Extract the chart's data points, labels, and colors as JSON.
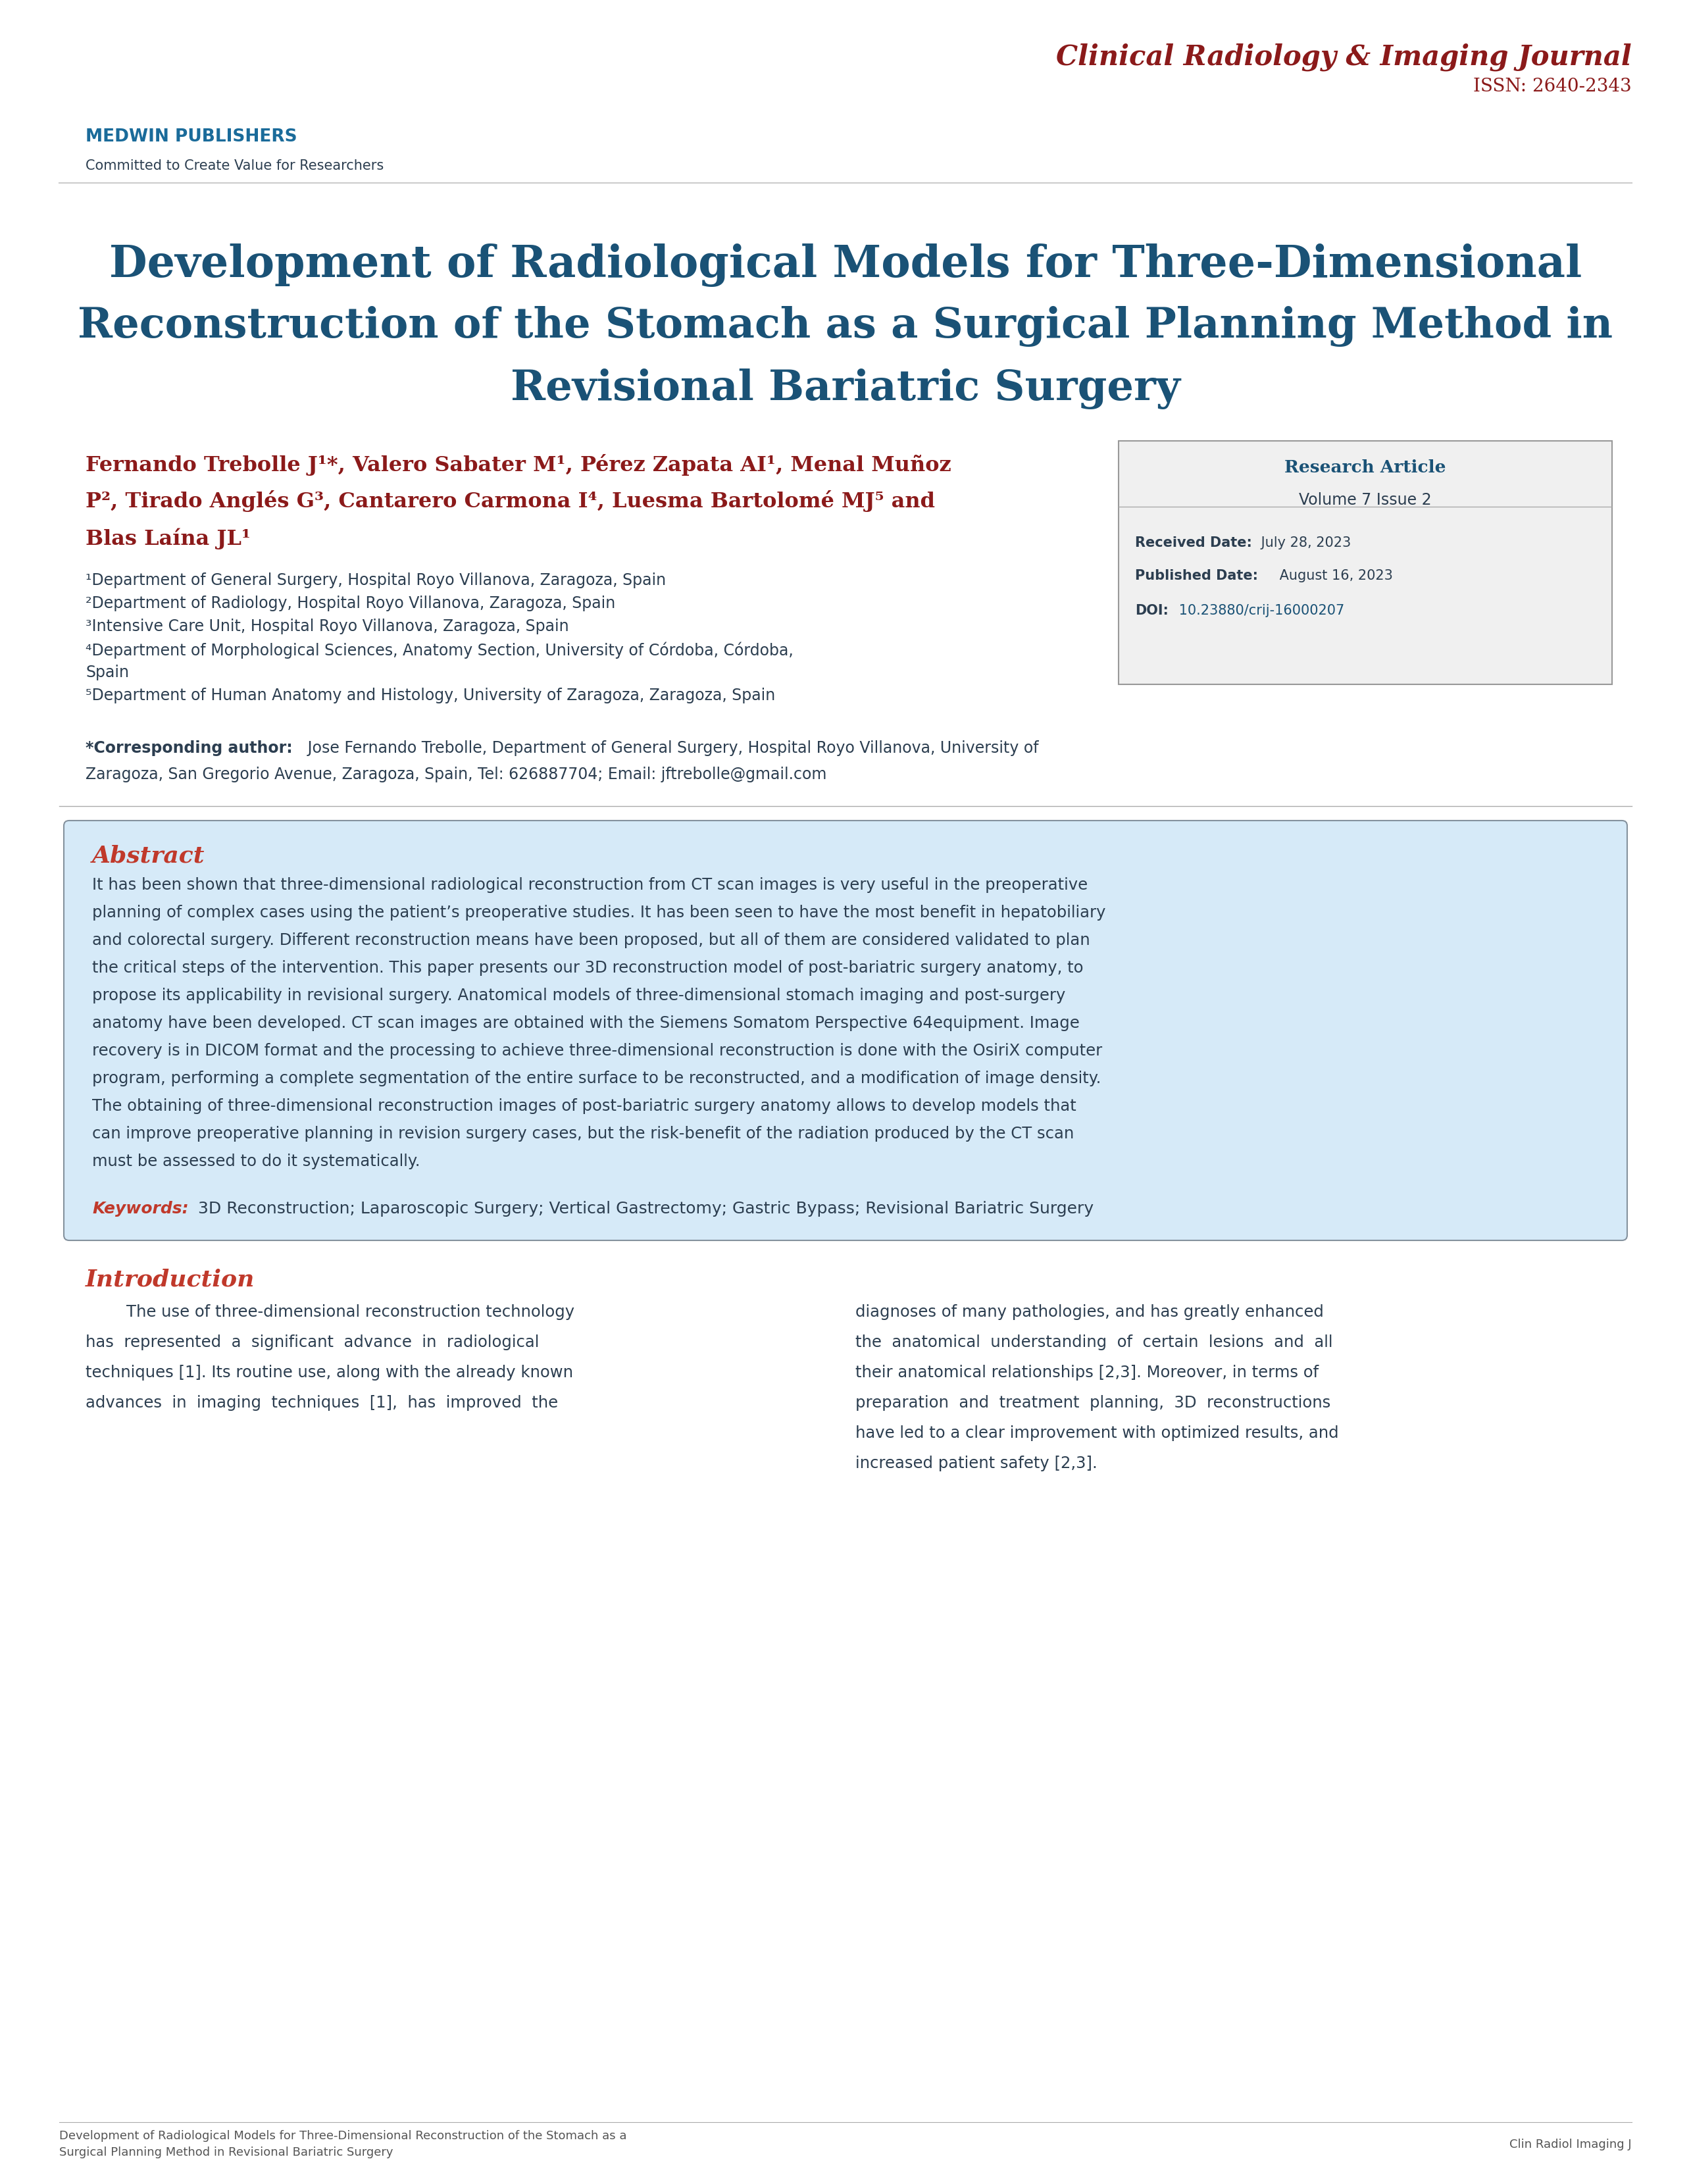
{
  "page_bg": "#ffffff",
  "journal_title": "Clinical Radiology & Imaging Journal",
  "journal_title_color": "#8B1A1A",
  "issn": "ISSN: 2640-2343",
  "issn_color": "#8B1A1A",
  "publisher_name": "MEDWIN PUBLISHERS",
  "publisher_name_color": "#1a6b9a",
  "publisher_tagline": "Committed to Create Value for Researchers",
  "publisher_tagline_color": "#2c3e50",
  "article_title_line1": "Development of Radiological Models for Three-Dimensional",
  "article_title_line2": "Reconstruction of the Stomach as a Surgical Planning Method in",
  "article_title_line3": "Revisional Bariatric Surgery",
  "article_title_color": "#1a5276",
  "authors_line1": "Fernando Trebolle J¹*, Valero Sabater M¹, Pérez Zapata AI¹, Menal Muñoz",
  "authors_line2": "P², Tirado Anglés G³, Cantarero Carmona I⁴, Luesma Bartolomé MJ⁵ and",
  "authors_line3": "Blas Laína JL¹",
  "authors_color": "#8B1A1A",
  "affiliations": [
    "¹Department of General Surgery, Hospital Royo Villanova, Zaragoza, Spain",
    "²Department of Radiology, Hospital Royo Villanova, Zaragoza, Spain",
    "³Intensive Care Unit, Hospital Royo Villanova, Zaragoza, Spain",
    "⁴Department of Morphological Sciences, Anatomy Section, University of Córdoba, Córdoba,",
    "Spain",
    "⁵Department of Human Anatomy and Histology, University of Zaragoza, Zaragoza, Spain"
  ],
  "affiliations_color": "#2c3e50",
  "corresponding_bold": "*Corresponding author:",
  "corresponding_text": " Jose Fernando Trebolle, Department of General Surgery, Hospital Royo Villanova, University of Zaragoza, San Gregorio Avenue, Zaragoza, Spain, Tel: 626887704; Email: jftrebolle@gmail.com",
  "corresponding_color": "#2c3e50",
  "sidebar_title": "Research Article",
  "sidebar_title_color": "#1a5276",
  "sidebar_volume": "Volume 7 Issue 2",
  "sidebar_received_label": "Received Date:",
  "sidebar_received": " July 28, 2023",
  "sidebar_published_label": "Published Date:",
  "sidebar_published": " August 16, 2023",
  "sidebar_doi_label": "DOI:",
  "sidebar_doi": " 10.23880/crij-16000207",
  "sidebar_doi_color": "#1a5276",
  "sidebar_bg": "#f0f0f0",
  "sidebar_border": "#999999",
  "abstract_title": "Abstract",
  "abstract_title_color": "#c0392b",
  "abstract_lines": [
    "It has been shown that three-dimensional radiological reconstruction from CT scan images is very useful in the preoperative",
    "planning of complex cases using the patient’s preoperative studies. It has been seen to have the most benefit in hepatobiliary",
    "and colorectal surgery. Different reconstruction means have been proposed, but all of them are considered validated to plan",
    "the critical steps of the intervention. This paper presents our 3D reconstruction model of post-bariatric surgery anatomy, to",
    "propose its applicability in revisional surgery. Anatomical models of three-dimensional stomach imaging and post-surgery",
    "anatomy have been developed. CT scan images are obtained with the Siemens Somatom Perspective 64equipment. Image",
    "recovery is in DICOM format and the processing to achieve three-dimensional reconstruction is done with the OsiriX computer",
    "program, performing a complete segmentation of the entire surface to be reconstructed, and a modification of image density.",
    "The obtaining of three-dimensional reconstruction images of post-bariatric surgery anatomy allows to develop models that",
    "can improve preoperative planning in revision surgery cases, but the risk-benefit of the radiation produced by the CT scan",
    "must be assessed to do it systematically."
  ],
  "abstract_text_color": "#2c3e50",
  "keywords_label": "Keywords:",
  "keywords_text": " 3D Reconstruction; Laparoscopic Surgery; Vertical Gastrectomy; Gastric Bypass; Revisional Bariatric Surgery",
  "keywords_color": "#c0392b",
  "keywords_text_color": "#2c3e50",
  "abstract_box_bg": "#d6eaf8",
  "abstract_box_border": "#85929e",
  "intro_title": "Introduction",
  "intro_title_color": "#c0392b",
  "intro_col1_lines": [
    "        The use of three-dimensional reconstruction technology",
    "has  represented  a  significant  advance  in  radiological",
    "techniques [1]. Its routine use, along with the already known",
    "advances  in  imaging  techniques  [1],  has  improved  the"
  ],
  "intro_col2_lines": [
    "diagnoses of many pathologies, and has greatly enhanced",
    "the  anatomical  understanding  of  certain  lesions  and  all",
    "their anatomical relationships [2,3]. Moreover, in terms of",
    "preparation  and  treatment  planning,  3D  reconstructions",
    "have led to a clear improvement with optimized results, and",
    "increased patient safety [2,3]."
  ],
  "footer_left": "Development of Radiological Models for Three-Dimensional Reconstruction of the Stomach as a\nSurgical Planning Method in Revisional Bariatric Surgery",
  "footer_right": "Clin Radiol Imaging J",
  "footer_color": "#555555",
  "footer_line_color": "#aaaaaa"
}
